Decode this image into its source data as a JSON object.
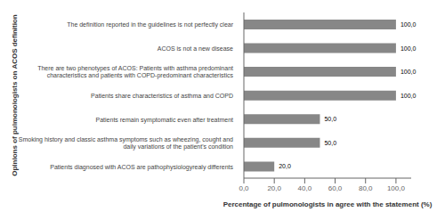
{
  "chart_data": {
    "type": "bar",
    "orientation": "horizontal",
    "categories": [
      "Patients diagnosed with ACOS are pathophysiologyrealy differents",
      "Smoking history and classic asthma symptoms such as wheezing, cought and\ndaily variations of the patient's condition",
      "Patients remain symptomatic even after treatment",
      "Patients share characteristics of asthma and COPD",
      "There are two phenotypes of ACOS: Patients with asthma predominant\ncharacteristics and patients with COPD-predominant characteristics",
      "ACOS is not a new disease",
      "The definition reported in the guidelines is not perfectly clear"
    ],
    "values": [
      20.0,
      50.0,
      50.0,
      100.0,
      100.0,
      100.0,
      100.0
    ],
    "value_labels": [
      "20,0",
      "50,0",
      "50,0",
      "100,0",
      "100,0",
      "100,0",
      "100,0"
    ],
    "data_labels": true,
    "color": "#878787",
    "xlabel": "Percentage of pulmonologists in agree with the statement (%)",
    "ylabel": "Opinions of pulmonologists on ACOS definition",
    "xlim": [
      0,
      110
    ],
    "xticks": [
      {
        "value": 0.0,
        "label": "0,0"
      },
      {
        "value": 20.0,
        "label": "20,0"
      },
      {
        "value": 40.0,
        "label": "40,0"
      },
      {
        "value": 60.0,
        "label": "60,0"
      },
      {
        "value": 80.0,
        "label": "80,0"
      },
      {
        "value": 100.0,
        "label": "100,0"
      }
    ],
    "grid": false
  }
}
